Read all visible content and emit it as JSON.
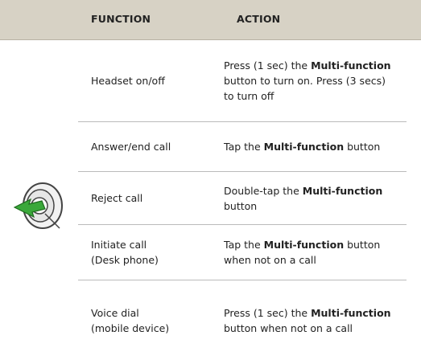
{
  "header": {
    "function": "FUNCTION",
    "action": "ACTION"
  },
  "rows": [
    {
      "function": [
        "Headset on/off"
      ],
      "action": [
        {
          "text": "Press (1 sec) the "
        },
        {
          "text": "Multi-function",
          "bold": true
        },
        {
          "text": " button to turn on. Press (3 secs) to turn off"
        }
      ]
    },
    {
      "function": [
        "Answer/end call"
      ],
      "action": [
        {
          "text": "Tap the "
        },
        {
          "text": "Multi-function",
          "bold": true
        },
        {
          "text": " button"
        }
      ]
    },
    {
      "function": [
        "Reject call"
      ],
      "action": [
        {
          "text": "Double-tap the "
        },
        {
          "text": "Multi-function",
          "bold": true
        },
        {
          "text": " button"
        }
      ]
    },
    {
      "function": [
        "Initiate call",
        "(Desk phone)"
      ],
      "action": [
        {
          "text": "Tap the "
        },
        {
          "text": "Multi-function",
          "bold": true
        },
        {
          "text": " button when not on a call"
        }
      ]
    },
    {
      "function": [
        "Voice dial",
        "(mobile device)"
      ],
      "action": [
        {
          "text": "Press (1 sec) the "
        },
        {
          "text": "Multi-function",
          "bold": true
        },
        {
          "text": " button when not on a call"
        }
      ]
    }
  ]
}
